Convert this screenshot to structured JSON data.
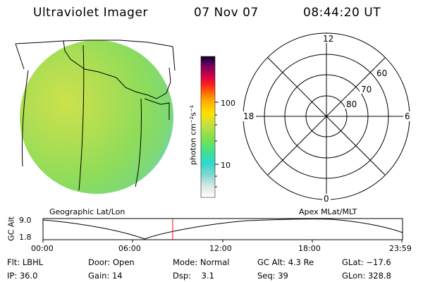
{
  "header": {
    "instrument": "Ultraviolet Imager",
    "date": "07 Nov 07",
    "time": "08:44:20 UT"
  },
  "colorbar": {
    "unit_label": "photon cm⁻²s⁻¹",
    "ticks": [
      "100",
      "10"
    ]
  },
  "polar_plot": {
    "mlt_labels": {
      "top": "12",
      "left": "18",
      "right": "6",
      "bottom": "0"
    },
    "lat_labels": [
      "60",
      "70",
      "80"
    ]
  },
  "map_labels": {
    "left": "Geographic Lat/Lon",
    "right": "Apex MLat/MLT"
  },
  "altitude_plot": {
    "ylabel": "GC Alt",
    "yticks": [
      "9.0",
      "1.8"
    ],
    "xticks": [
      "00:00",
      "06:00",
      "12:00",
      "18:00",
      "23:59"
    ],
    "marker_color": "#ff0000"
  },
  "info": {
    "flt_label": "Flt:",
    "flt_value": "LBHL",
    "ip_label": "IP:",
    "ip_value": "36.0",
    "door_label": "Door:",
    "door_value": "Open",
    "gain_label": "Gain:",
    "gain_value": "14",
    "mode_label": "Mode:",
    "mode_value": "Normal",
    "dsp_label": "Dsp:",
    "dsp_value": "3.1",
    "gcalt_label": "GC Alt:",
    "gcalt_value": "4.3 Re",
    "seq_label": "Seq:",
    "seq_value": "39",
    "glat_label": "GLat:",
    "glat_value": "−17.6",
    "glon_label": "GLon:",
    "glon_value": "328.8"
  },
  "colors": {
    "disk_fill": "#8fe04a",
    "disk_dayside": "#cde63c",
    "disk_edge": "#6fd6c2"
  }
}
